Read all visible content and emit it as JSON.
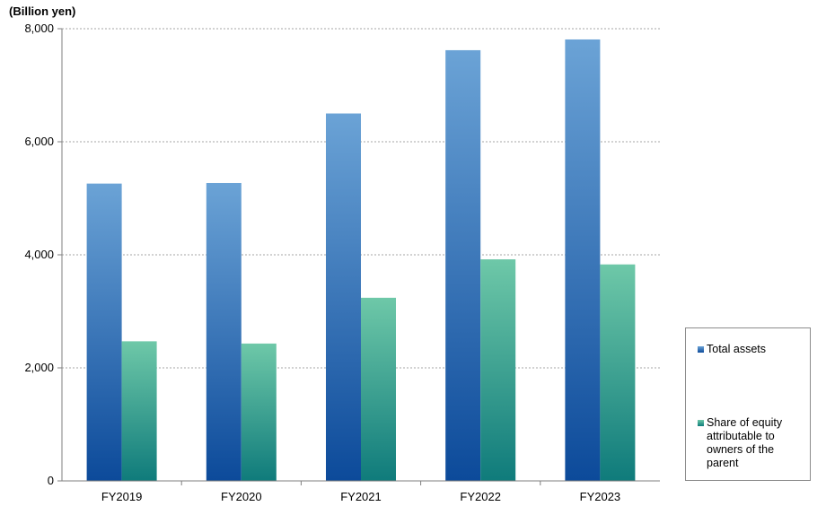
{
  "chart_data": {
    "type": "bar",
    "unit_label": "(Billion yen)",
    "categories": [
      "FY2019",
      "FY2020",
      "FY2021",
      "FY2022",
      "FY2023"
    ],
    "series": [
      {
        "name": "Total assets",
        "values": [
          5260,
          5270,
          6500,
          7620,
          7810
        ],
        "color_top": "#6ba3d6",
        "color_bottom": "#0c4a9a"
      },
      {
        "name": "Share of equity attributable to owners of the parent",
        "values": [
          2470,
          2430,
          3240,
          3920,
          3830
        ],
        "color_top": "#6ec8a8",
        "color_bottom": "#0f7b7b"
      }
    ],
    "ylim": [
      0,
      8000
    ],
    "y_ticks": [
      "0",
      "2,000",
      "4,000",
      "6,000",
      "8,000"
    ],
    "grid": true,
    "legend_position": "right"
  }
}
